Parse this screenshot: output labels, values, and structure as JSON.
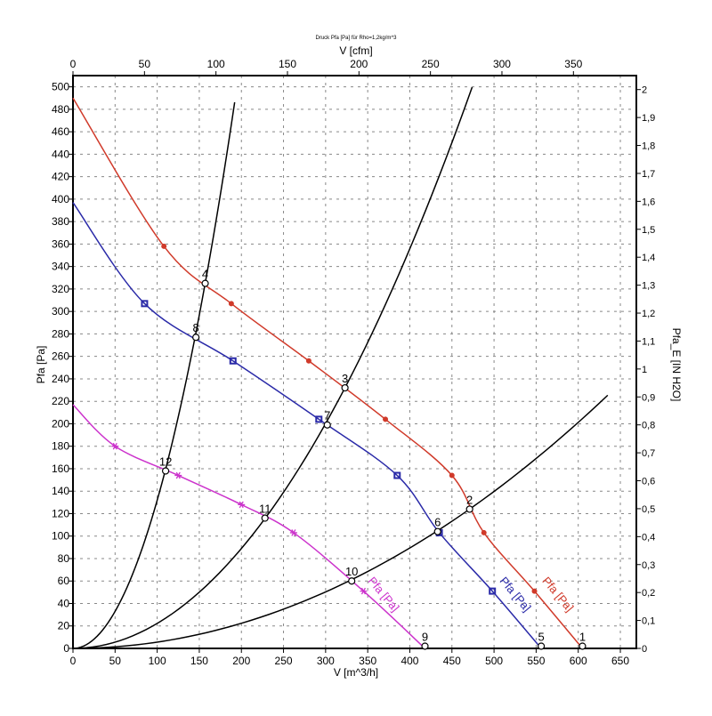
{
  "chart_data": {
    "type": "line",
    "title": "Druck Pfa [Pa] für Rho=1,2kg/m^3",
    "xlabel": "V [m^3/h]",
    "x2label": "V [cfm]",
    "ylabel": "Pfa [Pa]",
    "y2label": "Pfa_E [IN H2O]",
    "xlim": [
      0,
      669
    ],
    "ylim": [
      0,
      510
    ],
    "x2lim": [
      0,
      394
    ],
    "y2lim": [
      0,
      2.05
    ],
    "grid": true,
    "xticks": [
      0,
      50,
      100,
      150,
      200,
      250,
      300,
      350,
      400,
      450,
      500,
      550,
      600,
      650
    ],
    "yticks": [
      0,
      20,
      40,
      60,
      80,
      100,
      120,
      140,
      160,
      180,
      200,
      220,
      240,
      260,
      280,
      300,
      320,
      340,
      360,
      380,
      400,
      420,
      440,
      460,
      480,
      500
    ],
    "x2ticks": [
      0,
      50,
      100,
      150,
      200,
      250,
      300,
      350
    ],
    "y2ticks": [
      "0",
      "0,1",
      "0,2",
      "0,3",
      "0,4",
      "0,5",
      "0,6",
      "0,7",
      "0,8",
      "0,9",
      "1",
      "1,1",
      "1,2",
      "1,3",
      "1,4",
      "1,5",
      "1,6",
      "1,7",
      "1,8",
      "1,9",
      "2"
    ],
    "colors": {
      "red": "#d03a2a",
      "blue": "#2a2aa8",
      "magenta": "#cc33cc",
      "system": "#000000"
    },
    "series": [
      {
        "name": "Pfa [Pa]",
        "color": "#d03a2a",
        "marker": "circle",
        "x": [
          0,
          108,
          188,
          280,
          371,
          450,
          488,
          548,
          605
        ],
        "y": [
          490,
          358,
          307,
          256,
          204,
          154,
          103,
          51,
          0
        ]
      },
      {
        "name": "Pfa [Pa]",
        "color": "#2a2aa8",
        "marker": "square",
        "x": [
          0,
          85,
          190,
          292,
          385,
          435,
          498,
          556
        ],
        "y": [
          397,
          307,
          256,
          204,
          154,
          103,
          51,
          0
        ]
      },
      {
        "name": "Pfa [Pa]",
        "color": "#cc33cc",
        "marker": "star",
        "x": [
          0,
          50,
          125,
          200,
          262,
          345,
          418
        ],
        "y": [
          217,
          180,
          154,
          128,
          103,
          51,
          0
        ]
      }
    ],
    "system_curves": [
      {
        "k": 0.01319,
        "xmax": 192
      },
      {
        "k": 0.002224,
        "xmax": 474
      },
      {
        "k": 0.000559,
        "xmax": 635
      }
    ],
    "operating_points": [
      {
        "label": "1",
        "x": 605,
        "y": 2
      },
      {
        "label": "2",
        "x": 471,
        "y": 124
      },
      {
        "label": "3",
        "x": 323,
        "y": 232
      },
      {
        "label": "4",
        "x": 157,
        "y": 325
      },
      {
        "label": "5",
        "x": 556,
        "y": 2
      },
      {
        "label": "6",
        "x": 433,
        "y": 104
      },
      {
        "label": "7",
        "x": 302,
        "y": 199
      },
      {
        "label": "8",
        "x": 146,
        "y": 277
      },
      {
        "label": "9",
        "x": 418,
        "y": 2
      },
      {
        "label": "10",
        "x": 331,
        "y": 60
      },
      {
        "label": "11",
        "x": 228,
        "y": 116
      },
      {
        "label": "12",
        "x": 110,
        "y": 158
      }
    ]
  }
}
